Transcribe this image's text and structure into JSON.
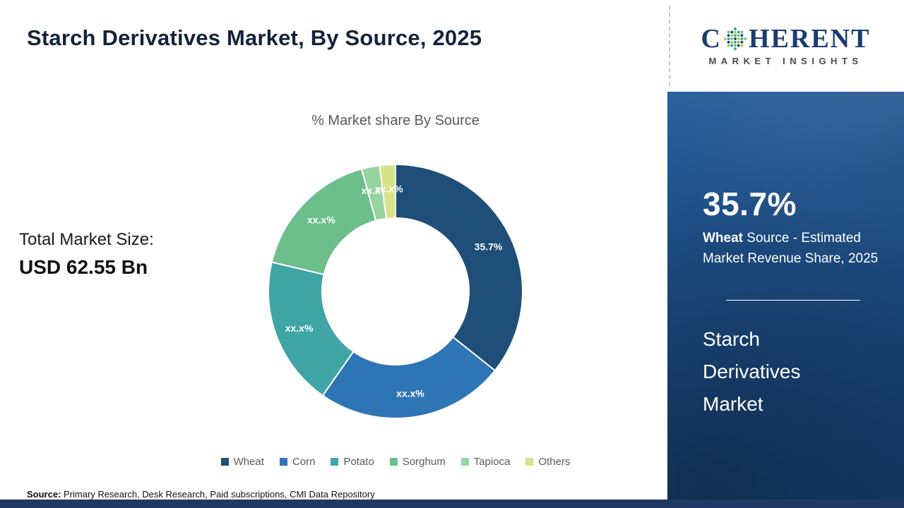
{
  "header": {
    "title": "Starch Derivatives Market, By Source, 2025"
  },
  "logo": {
    "brand_prefix": "C",
    "brand_suffix": "HERENT",
    "tagline": "MARKET INSIGHTS"
  },
  "chart_data": {
    "type": "pie",
    "donut": true,
    "title": "% Market share By Source",
    "categories": [
      "Wheat",
      "Corn",
      "Potato",
      "Sorghum",
      "Tapioca",
      "Others"
    ],
    "values": [
      35.7,
      24.0,
      19.0,
      17.0,
      2.3,
      2.0
    ],
    "labels": [
      "35.7%",
      "xx.x%",
      "xx.x%",
      "xx.x%",
      "xx.x%",
      "xx.x%"
    ],
    "colors": [
      "#1F4E79",
      "#2E75B6",
      "#3FA5A5",
      "#6CBE8B",
      "#97D4A0",
      "#D7E389"
    ],
    "legend_position": "bottom"
  },
  "left_panel": {
    "total_label": "Total Market Size:",
    "total_value": "USD 62.55 Bn"
  },
  "sidebar": {
    "stat_value": "35.7%",
    "stat_bold": "Wheat",
    "stat_text": " Source - Estimated Market Revenue Share, 2025",
    "market_name": "Starch Derivatives Market"
  },
  "footer": {
    "source_label": "Source:",
    "source_text": " Primary Research, Desk Research, Paid subscriptions, CMI Data Repository"
  }
}
